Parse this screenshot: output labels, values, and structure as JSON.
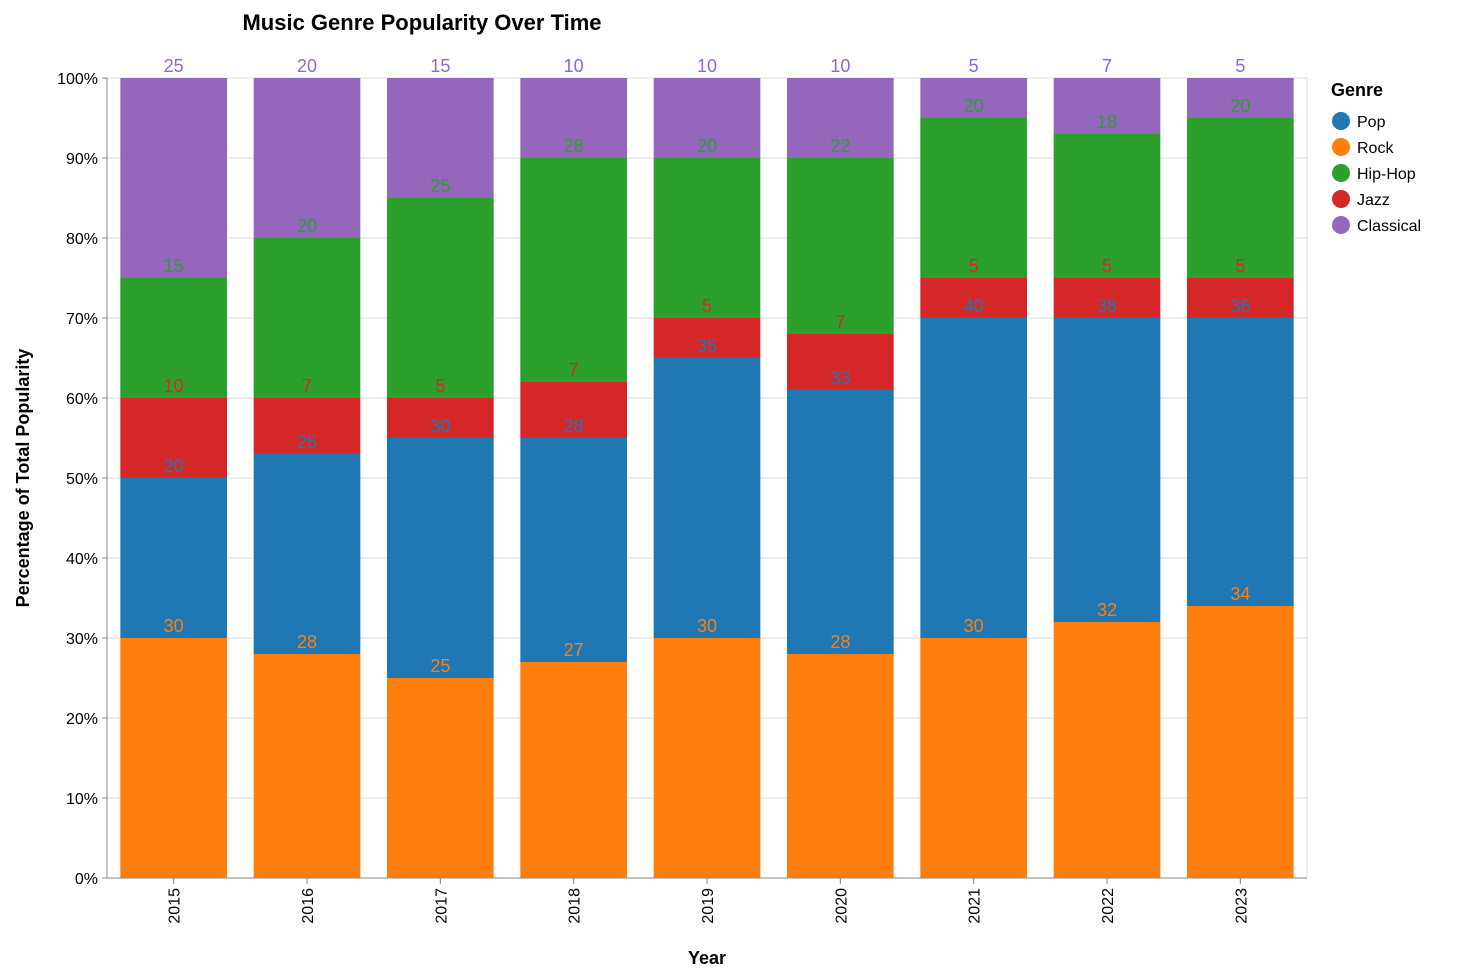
{
  "chart_data": {
    "type": "bar",
    "stacked": true,
    "title": "Music Genre Popularity Over Time",
    "xlabel": "Year",
    "ylabel": "Percentage of Total Popularity",
    "ylim": [
      0,
      100
    ],
    "y_ticks": [
      "0%",
      "10%",
      "20%",
      "30%",
      "40%",
      "50%",
      "60%",
      "70%",
      "80%",
      "90%",
      "100%"
    ],
    "grid": true,
    "legend_title": "Genre",
    "legend_placement": "top-right",
    "categories": [
      "2015",
      "2016",
      "2017",
      "2018",
      "2019",
      "2020",
      "2021",
      "2022",
      "2023"
    ],
    "stack_order": [
      "Rock",
      "Pop",
      "Jazz",
      "Hip-Hop",
      "Classical"
    ],
    "series": [
      {
        "name": "Pop",
        "color": "#1f77b4",
        "values": [
          20,
          25,
          30,
          28,
          35,
          33,
          40,
          38,
          36
        ]
      },
      {
        "name": "Rock",
        "color": "#ff7f0e",
        "values": [
          30,
          28,
          25,
          27,
          30,
          28,
          30,
          32,
          34
        ]
      },
      {
        "name": "Hip-Hop",
        "color": "#2ca02c",
        "values": [
          15,
          20,
          25,
          28,
          20,
          22,
          20,
          18,
          20
        ]
      },
      {
        "name": "Jazz",
        "color": "#d62728",
        "values": [
          10,
          7,
          5,
          7,
          5,
          7,
          5,
          5,
          5
        ]
      },
      {
        "name": "Classical",
        "color": "#9467bd",
        "values": [
          25,
          20,
          15,
          10,
          10,
          10,
          5,
          7,
          5
        ]
      }
    ]
  }
}
